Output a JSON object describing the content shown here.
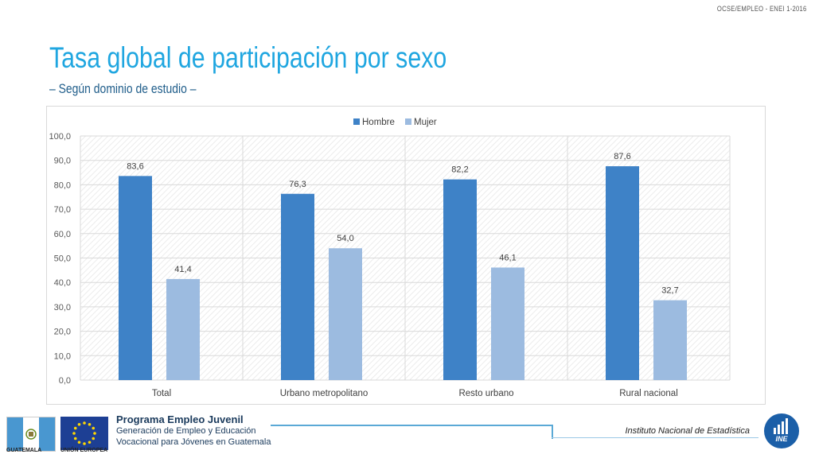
{
  "header_ref": "OCSE/EMPLEO - ENEI 1-2016",
  "title": "Tasa global de participación por sexo",
  "subtitle": "– Según dominio de estudio –",
  "colors": {
    "hombre": "#3e82c7",
    "mujer": "#9cbbe0",
    "title": "#1fa6e0"
  },
  "chart_data": {
    "type": "bar",
    "categories": [
      "Total",
      "Urbano metropolitano",
      "Resto urbano",
      "Rural nacional"
    ],
    "series": [
      {
        "name": "Hombre",
        "values": [
          83.6,
          76.3,
          82.2,
          87.6
        ]
      },
      {
        "name": "Mujer",
        "values": [
          41.4,
          54.0,
          46.1,
          32.7
        ]
      }
    ],
    "value_labels": [
      [
        "83,6",
        "76,3",
        "82,2",
        "87,6"
      ],
      [
        "41,4",
        "54,0",
        "46,1",
        "32,7"
      ]
    ],
    "y_ticks": [
      "0,0",
      "10,0",
      "20,0",
      "30,0",
      "40,0",
      "50,0",
      "60,0",
      "70,0",
      "80,0",
      "90,0",
      "100,0"
    ],
    "ylim": [
      0,
      100
    ],
    "legend_position": "top",
    "grid": true
  },
  "footer": {
    "flag_gt_label": "GUATEMALA",
    "flag_eu_label": "UNIÓN EUROPEA",
    "program_title": "Programa Empleo Juvenil",
    "program_line1": "Generación de Empleo y Educación",
    "program_line2": "Vocacional para Jóvenes en Guatemala",
    "institute": "Instituto Nacional de Estadística",
    "ine_logo_text": "INE"
  }
}
